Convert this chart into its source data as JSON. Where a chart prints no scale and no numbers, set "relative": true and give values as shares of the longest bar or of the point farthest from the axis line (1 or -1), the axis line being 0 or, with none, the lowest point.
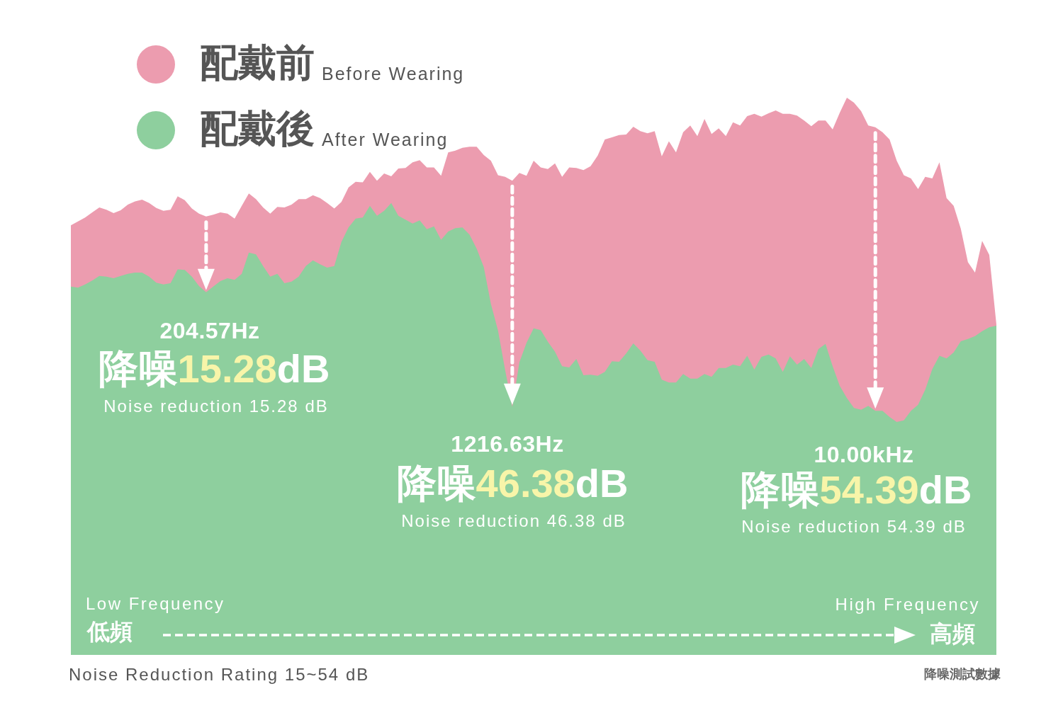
{
  "chart_data": {
    "type": "area",
    "relative": true,
    "legend": "top left",
    "categories": [
      null,
      null,
      null,
      null,
      null,
      null,
      null,
      null,
      null,
      null,
      null,
      null,
      null,
      null,
      null,
      null,
      null,
      null,
      null,
      null,
      null,
      null,
      null,
      null,
      null,
      null,
      null,
      null,
      null,
      null,
      null,
      null,
      null,
      null,
      null,
      null,
      null,
      null,
      null,
      null,
      null,
      null,
      null,
      null,
      null,
      null,
      null,
      null,
      null,
      null,
      null,
      null,
      null,
      null,
      null,
      null,
      null,
      null,
      null,
      null,
      null,
      null,
      null,
      null,
      null,
      null,
      null,
      null,
      null,
      null,
      null,
      null,
      null,
      null,
      null,
      null,
      null,
      null,
      null,
      null,
      null,
      null,
      null,
      null,
      null,
      null,
      null,
      null,
      null,
      null,
      null,
      null,
      null,
      null,
      null,
      null,
      null,
      null,
      null,
      null,
      null,
      null,
      null,
      null,
      null,
      null,
      null,
      null,
      null,
      null,
      null,
      null,
      null,
      null,
      null,
      null,
      null,
      null,
      null,
      null,
      null,
      null,
      null,
      null,
      null,
      null,
      null,
      null,
      null,
      null,
      null
    ],
    "series": [
      {
        "name": "配戴前 Before Wearing",
        "color": "#ec9caf",
        "values": [
          0.771,
          0.778,
          0.785,
          0.794,
          0.803,
          0.799,
          0.793,
          0.798,
          0.808,
          0.814,
          0.817,
          0.811,
          0.802,
          0.797,
          0.799,
          0.823,
          0.816,
          0.801,
          0.792,
          0.787,
          0.79,
          0.794,
          0.792,
          0.783,
          0.806,
          0.828,
          0.818,
          0.803,
          0.792,
          0.804,
          0.803,
          0.808,
          0.818,
          0.818,
          0.825,
          0.82,
          0.811,
          0.801,
          0.813,
          0.839,
          0.849,
          0.848,
          0.867,
          0.851,
          0.864,
          0.859,
          0.873,
          0.874,
          0.884,
          0.888,
          0.875,
          0.875,
          0.86,
          0.902,
          0.905,
          0.91,
          0.912,
          0.912,
          0.897,
          0.887,
          0.861,
          0.858,
          0.851,
          0.865,
          0.86,
          0.887,
          0.875,
          0.872,
          0.882,
          0.858,
          0.875,
          0.874,
          0.87,
          0.877,
          0.896,
          0.925,
          0.929,
          0.933,
          0.934,
          0.948,
          0.94,
          0.936,
          0.94,
          0.895,
          0.922,
          0.902,
          0.938,
          0.95,
          0.931,
          0.962,
          0.935,
          0.945,
          0.931,
          0.956,
          0.95,
          0.967,
          0.971,
          0.966,
          0.972,
          0.977,
          0.971,
          0.971,
          0.968,
          0.959,
          0.949,
          0.959,
          0.959,
          0.943,
          0.973,
          1,
          0.991,
          0.976,
          0.95,
          0.947,
          0.938,
          0.925,
          0.887,
          0.861,
          0.855,
          0.836,
          0.858,
          0.855,
          0.884,
          0.82,
          0.806,
          0.765,
          0.705,
          0.686,
          0.743,
          0.718,
          0.593
        ]
      },
      {
        "name": "配戴後 After Wearing",
        "color": "#8ecf9e",
        "values": [
          0.661,
          0.659,
          0.665,
          0.672,
          0.68,
          0.679,
          0.676,
          0.68,
          0.684,
          0.686,
          0.686,
          0.679,
          0.668,
          0.665,
          0.667,
          0.692,
          0.691,
          0.679,
          0.662,
          0.651,
          0.661,
          0.671,
          0.676,
          0.673,
          0.684,
          0.722,
          0.719,
          0.698,
          0.679,
          0.684,
          0.667,
          0.67,
          0.679,
          0.698,
          0.708,
          0.701,
          0.695,
          0.698,
          0.741,
          0.767,
          0.783,
          0.785,
          0.806,
          0.788,
          0.797,
          0.811,
          0.788,
          0.781,
          0.774,
          0.78,
          0.764,
          0.769,
          0.745,
          0.76,
          0.766,
          0.767,
          0.754,
          0.729,
          0.696,
          0.63,
          0.582,
          0.511,
          0.445,
          0.525,
          0.56,
          0.586,
          0.583,
          0.562,
          0.544,
          0.518,
          0.516,
          0.531,
          0.502,
          0.503,
          0.501,
          0.508,
          0.527,
          0.526,
          0.541,
          0.559,
          0.546,
          0.529,
          0.526,
          0.494,
          0.489,
          0.489,
          0.504,
          0.496,
          0.496,
          0.504,
          0.499,
          0.515,
          0.515,
          0.521,
          0.518,
          0.537,
          0.512,
          0.535,
          0.539,
          0.532,
          0.508,
          0.536,
          0.521,
          0.531,
          0.515,
          0.549,
          0.558,
          0.518,
          0.483,
          0.461,
          0.443,
          0.44,
          0.447,
          0.438,
          0.438,
          0.427,
          0.418,
          0.421,
          0.438,
          0.449,
          0.476,
          0.513,
          0.537,
          0.532,
          0.543,
          0.563,
          0.567,
          0.572,
          0.581,
          0.588,
          0.591
        ]
      }
    ],
    "annotations": [
      "204.57Hz",
      "降噪15.28dB",
      "Noise reduction 15.28 dB",
      "1216.63Hz",
      "降噪46.38dB",
      "Noise reduction 46.38 dB",
      "10.00kHz",
      "降噪54.39dB",
      "Noise reduction 54.39 dB",
      "Low Frequency",
      "低頻",
      "高頻",
      "High Frequency",
      "Noise Reduction Rating 15~54 dB",
      "降噪測試數據"
    ]
  }
}
